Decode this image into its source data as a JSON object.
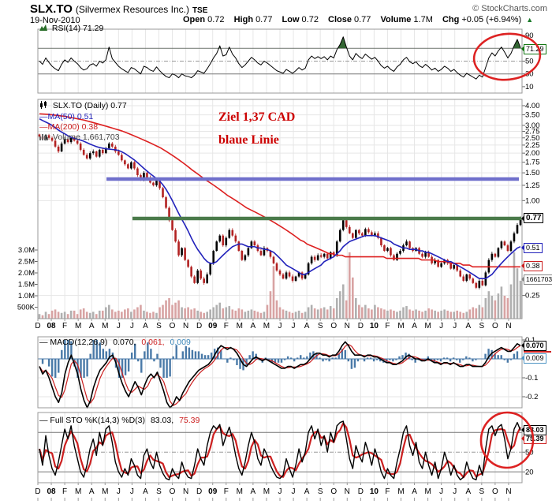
{
  "header": {
    "symbol": "SLX.TO",
    "company": "(Silvermex Resources Inc.)",
    "exchange": "TSE",
    "copyright": "© StockCharts.com",
    "date": "19-Nov-2010",
    "quote": [
      {
        "label": "Open",
        "value": "0.72"
      },
      {
        "label": "High",
        "value": "0.77"
      },
      {
        "label": "Low",
        "value": "0.72"
      },
      {
        "label": "Close",
        "value": "0.77"
      },
      {
        "label": "Volume",
        "value": "1.7M"
      },
      {
        "label": "Chg",
        "value": "+0.05 (+6.94%)"
      }
    ],
    "chg_direction": "▲"
  },
  "legends": {
    "rsi": "RSI(14) 71.29",
    "price_symbol": "SLX.TO (Daily) 0.77",
    "ma50": "—MA(50) 0.51",
    "ma200": "—MA(200) 0.38",
    "volume": "Volume 1,661,703",
    "macd_name": "— MACD(12,26,9)",
    "macd_v1": "0.070,",
    "macd_v2": "0.061,",
    "macd_v3": "0.009",
    "sto_name": "— Full STO %K(14,3) %D(3)",
    "sto_k": "83.03,",
    "sto_d": "75.39"
  },
  "annotations": {
    "line1": "Ziel 1,37 CAD",
    "line2": "blaue Linie"
  },
  "boxes": {
    "rsi": "71.29",
    "close": "0.77",
    "ma50": "0.51",
    "ma200": "0.38",
    "volume": "1661703",
    "macd": "0.070",
    "macd_hist": "0.009",
    "sto_k": "83.03",
    "sto_d": "75.39"
  },
  "colors": {
    "candle_up": "#000000",
    "candle_down": "#b22222",
    "ma50": "#2222bb",
    "ma200": "#dd2020",
    "macd_hist": "#4a7aa8",
    "trendline_blue": "#7070cc",
    "trendline_green": "#4a7a4a",
    "annotation_red": "#cc0000",
    "highlight_circle": "#dd2222",
    "volume_up": "#b0b0b0",
    "volume_down": "#d8a3a3",
    "chg_up": "#1b7a2a"
  },
  "chart_data": {
    "type": "stockchart-multi-panel",
    "x_axis": {
      "range": "Dec-2007 to Nov-2010",
      "labels": [
        "D",
        "08",
        "F",
        "M",
        "A",
        "M",
        "J",
        "J",
        "A",
        "S",
        "O",
        "N",
        "D",
        "09",
        "F",
        "M",
        "A",
        "M",
        "J",
        "J",
        "A",
        "S",
        "O",
        "N",
        "D",
        "10",
        "F",
        "M",
        "A",
        "M",
        "J",
        "J",
        "A",
        "S",
        "O",
        "N"
      ]
    },
    "rsi_panel": {
      "type": "line",
      "name": "RSI(14)",
      "ylim": [
        0,
        100
      ],
      "ticks": [
        "90",
        "50",
        "30",
        "10"
      ],
      "overbought": 70,
      "midline": 50,
      "oversold": 30,
      "last": 71.29,
      "values": [
        50,
        45,
        55,
        48,
        42,
        38,
        35,
        45,
        52,
        48,
        55,
        50,
        46,
        40,
        36,
        38,
        44,
        46,
        42,
        50,
        47,
        52,
        72,
        54,
        48,
        42,
        38,
        35,
        32,
        40,
        38,
        34,
        30,
        42,
        40,
        36,
        34,
        41,
        35,
        30,
        26,
        24,
        30,
        28,
        24,
        30,
        27,
        26,
        24,
        28,
        35,
        33,
        31,
        38,
        46,
        55,
        62,
        74,
        58,
        60,
        72,
        61,
        55,
        46,
        40,
        44,
        50,
        56,
        52,
        47,
        44,
        50,
        47,
        43,
        39,
        35,
        33,
        31,
        37,
        34,
        31,
        35,
        40,
        36,
        39,
        52,
        58,
        54,
        57,
        54,
        57,
        52,
        58,
        55,
        68,
        76,
        88,
        72,
        58,
        52,
        62,
        57,
        54,
        61,
        57,
        53,
        56,
        50,
        43,
        39,
        42,
        37,
        34,
        41,
        45,
        52,
        56,
        49,
        46,
        49,
        43,
        40,
        45,
        41,
        36,
        39,
        34,
        37,
        42,
        39,
        34,
        37,
        32,
        28,
        25,
        31,
        28,
        25,
        22,
        28,
        25,
        40,
        55,
        63,
        58,
        66,
        72,
        64,
        55,
        62,
        74,
        84,
        71.29
      ]
    },
    "price_panel": {
      "type": "candlestick",
      "log_scale": true,
      "ylim": [
        0.18,
        4.34
      ],
      "yticks": [
        "4.00",
        "3.50",
        "3.00",
        "2.75",
        "2.50",
        "2.25",
        "2.00",
        "1.75",
        "1.50",
        "1.25",
        "1.00",
        "0.25"
      ],
      "volume_ticks": [
        "3.0M",
        "2.5M",
        "2.0M",
        "1.5M",
        "1.0M",
        "500K"
      ],
      "last_close": 0.77,
      "ma50_last": 0.51,
      "ma200_last": 0.38,
      "volume_last": 1661703,
      "trendlines": [
        {
          "value": 1.37,
          "color": "#7070cc",
          "note": "blaue Linie — Ziel 1,37 CAD"
        },
        {
          "value": 0.77,
          "color": "#4a7a4a"
        }
      ],
      "weekly_closes": [
        2.55,
        2.45,
        2.6,
        2.5,
        2.4,
        2.2,
        2.05,
        2.3,
        2.45,
        2.35,
        2.5,
        2.4,
        2.3,
        2.1,
        1.95,
        1.85,
        2.0,
        2.05,
        1.9,
        2.1,
        2.0,
        2.15,
        2.3,
        2.2,
        2.05,
        1.95,
        1.8,
        1.7,
        1.6,
        1.75,
        1.6,
        1.45,
        1.35,
        1.5,
        1.4,
        1.3,
        1.25,
        1.35,
        1.2,
        1.05,
        0.9,
        0.75,
        0.65,
        0.55,
        0.45,
        0.5,
        0.42,
        0.38,
        0.33,
        0.3,
        0.36,
        0.32,
        0.3,
        0.34,
        0.4,
        0.48,
        0.55,
        0.6,
        0.52,
        0.58,
        0.65,
        0.6,
        0.55,
        0.48,
        0.42,
        0.45,
        0.5,
        0.55,
        0.52,
        0.48,
        0.45,
        0.5,
        0.48,
        0.44,
        0.4,
        0.36,
        0.34,
        0.32,
        0.35,
        0.33,
        0.31,
        0.33,
        0.35,
        0.32,
        0.34,
        0.4,
        0.44,
        0.42,
        0.45,
        0.44,
        0.46,
        0.43,
        0.47,
        0.45,
        0.55,
        0.65,
        0.75,
        0.68,
        0.62,
        0.58,
        0.65,
        0.62,
        0.6,
        0.66,
        0.63,
        0.6,
        0.62,
        0.58,
        0.52,
        0.48,
        0.5,
        0.45,
        0.42,
        0.46,
        0.48,
        0.52,
        0.55,
        0.5,
        0.48,
        0.5,
        0.46,
        0.44,
        0.47,
        0.44,
        0.4,
        0.42,
        0.38,
        0.4,
        0.42,
        0.4,
        0.37,
        0.39,
        0.36,
        0.33,
        0.31,
        0.34,
        0.32,
        0.3,
        0.28,
        0.31,
        0.29,
        0.35,
        0.42,
        0.46,
        0.44,
        0.5,
        0.55,
        0.52,
        0.48,
        0.55,
        0.62,
        0.7,
        0.77
      ],
      "ma50": [
        3.3,
        3.22,
        3.15,
        3.08,
        3.0,
        2.9,
        2.8,
        2.72,
        2.65,
        2.58,
        2.52,
        2.48,
        2.45,
        2.42,
        2.38,
        2.33,
        2.28,
        2.24,
        2.2,
        2.17,
        2.15,
        2.13,
        2.12,
        2.11,
        2.1,
        2.08,
        2.04,
        1.99,
        1.93,
        1.87,
        1.81,
        1.74,
        1.67,
        1.6,
        1.54,
        1.48,
        1.43,
        1.38,
        1.33,
        1.26,
        1.18,
        1.09,
        1.0,
        0.91,
        0.83,
        0.76,
        0.7,
        0.64,
        0.58,
        0.53,
        0.49,
        0.46,
        0.43,
        0.41,
        0.4,
        0.4,
        0.41,
        0.43,
        0.45,
        0.47,
        0.49,
        0.51,
        0.52,
        0.53,
        0.53,
        0.52,
        0.51,
        0.51,
        0.51,
        0.5,
        0.5,
        0.49,
        0.49,
        0.48,
        0.47,
        0.45,
        0.43,
        0.41,
        0.39,
        0.38,
        0.37,
        0.36,
        0.35,
        0.34,
        0.34,
        0.35,
        0.36,
        0.37,
        0.38,
        0.39,
        0.41,
        0.42,
        0.43,
        0.44,
        0.46,
        0.48,
        0.51,
        0.53,
        0.55,
        0.56,
        0.57,
        0.58,
        0.59,
        0.6,
        0.6,
        0.6,
        0.6,
        0.59,
        0.58,
        0.57,
        0.56,
        0.55,
        0.53,
        0.52,
        0.51,
        0.5,
        0.5,
        0.49,
        0.49,
        0.49,
        0.48,
        0.48,
        0.47,
        0.47,
        0.46,
        0.45,
        0.44,
        0.43,
        0.42,
        0.41,
        0.41,
        0.4,
        0.39,
        0.38,
        0.37,
        0.36,
        0.35,
        0.34,
        0.33,
        0.32,
        0.32,
        0.32,
        0.33,
        0.34,
        0.36,
        0.38,
        0.4,
        0.42,
        0.44,
        0.46,
        0.48,
        0.5,
        0.51
      ],
      "ma200": [
        3.55,
        3.54,
        3.53,
        3.52,
        3.5,
        3.48,
        3.46,
        3.44,
        3.42,
        3.39,
        3.36,
        3.33,
        3.3,
        3.27,
        3.24,
        3.2,
        3.16,
        3.12,
        3.08,
        3.04,
        3.0,
        2.96,
        2.92,
        2.88,
        2.84,
        2.8,
        2.76,
        2.71,
        2.66,
        2.61,
        2.56,
        2.51,
        2.46,
        2.41,
        2.36,
        2.31,
        2.26,
        2.21,
        2.16,
        2.1,
        2.04,
        1.98,
        1.92,
        1.86,
        1.8,
        1.74,
        1.68,
        1.62,
        1.56,
        1.51,
        1.46,
        1.41,
        1.36,
        1.32,
        1.28,
        1.24,
        1.2,
        1.16,
        1.12,
        1.08,
        1.05,
        1.02,
        0.99,
        0.96,
        0.93,
        0.9,
        0.88,
        0.86,
        0.84,
        0.82,
        0.8,
        0.78,
        0.76,
        0.74,
        0.72,
        0.7,
        0.68,
        0.66,
        0.64,
        0.62,
        0.6,
        0.58,
        0.56,
        0.55,
        0.53,
        0.52,
        0.51,
        0.5,
        0.49,
        0.48,
        0.47,
        0.46,
        0.46,
        0.45,
        0.45,
        0.45,
        0.44,
        0.44,
        0.44,
        0.44,
        0.44,
        0.44,
        0.44,
        0.44,
        0.44,
        0.44,
        0.44,
        0.44,
        0.44,
        0.43,
        0.43,
        0.43,
        0.43,
        0.43,
        0.43,
        0.43,
        0.43,
        0.43,
        0.43,
        0.43,
        0.42,
        0.42,
        0.42,
        0.42,
        0.42,
        0.41,
        0.41,
        0.41,
        0.41,
        0.4,
        0.4,
        0.4,
        0.4,
        0.39,
        0.39,
        0.39,
        0.38,
        0.38,
        0.38,
        0.38,
        0.38,
        0.38,
        0.38,
        0.38,
        0.38,
        0.38,
        0.38,
        0.38,
        0.38,
        0.38,
        0.38,
        0.38
      ],
      "volume_millions": [
        0.2,
        0.15,
        0.3,
        0.2,
        0.35,
        0.4,
        0.3,
        0.25,
        0.3,
        0.2,
        0.35,
        0.35,
        0.2,
        0.4,
        0.45,
        0.3,
        0.25,
        0.3,
        0.2,
        0.35,
        0.35,
        0.5,
        0.6,
        0.4,
        0.3,
        0.35,
        0.3,
        0.4,
        0.45,
        0.3,
        0.4,
        0.5,
        0.6,
        0.35,
        0.3,
        0.25,
        0.3,
        0.25,
        0.5,
        0.6,
        0.8,
        0.9,
        0.6,
        0.7,
        0.8,
        0.5,
        0.45,
        0.5,
        0.4,
        0.45,
        0.35,
        0.3,
        0.25,
        0.3,
        0.4,
        0.5,
        0.6,
        0.7,
        0.45,
        0.5,
        0.55,
        0.4,
        0.35,
        0.45,
        0.4,
        0.3,
        0.35,
        0.4,
        0.35,
        0.3,
        0.25,
        0.3,
        0.6,
        1.2,
        2.3,
        0.8,
        0.5,
        0.4,
        0.35,
        0.3,
        0.25,
        0.3,
        0.35,
        0.25,
        0.3,
        0.5,
        0.6,
        0.45,
        0.4,
        0.45,
        0.5,
        0.4,
        0.55,
        0.45,
        0.9,
        1.2,
        1.5,
        0.8,
        2.9,
        1.8,
        0.9,
        0.6,
        0.5,
        0.6,
        0.45,
        0.4,
        0.6,
        0.5,
        0.45,
        0.4,
        0.35,
        0.4,
        0.35,
        0.3,
        0.35,
        0.5,
        0.55,
        0.4,
        0.35,
        0.4,
        0.35,
        0.3,
        0.35,
        0.45,
        0.4,
        0.35,
        0.3,
        0.35,
        0.4,
        0.35,
        0.3,
        0.3,
        0.35,
        0.3,
        0.25,
        0.3,
        0.4,
        0.5,
        0.45,
        0.6,
        0.5,
        0.9,
        1.2,
        1.0,
        0.8,
        1.1,
        1.4,
        1.0,
        0.9,
        1.5,
        2.9,
        2.2,
        1.66
      ]
    },
    "macd_panel": {
      "type": "line+histogram",
      "name": "MACD(12,26,9)",
      "ylim": [
        -0.29,
        0.12
      ],
      "ticks": [
        "0.1",
        "-0.1",
        "-0.2"
      ],
      "last": [
        0.07,
        0.061,
        0.009
      ],
      "values": [
        -0.04,
        -0.08,
        -0.06,
        -0.1,
        -0.15,
        -0.2,
        -0.23,
        -0.18,
        -0.08,
        -0.02,
        0.02,
        -0.03,
        -0.08,
        -0.16,
        -0.22,
        -0.26,
        -0.22,
        -0.15,
        -0.1,
        -0.06,
        -0.04,
        -0.02,
        0.01,
        0.02,
        -0.02,
        -0.08,
        -0.13,
        -0.17,
        -0.2,
        -0.16,
        -0.12,
        -0.15,
        -0.19,
        -0.14,
        -0.1,
        -0.08,
        -0.1,
        -0.07,
        -0.12,
        -0.17,
        -0.23,
        -0.27,
        -0.24,
        -0.2,
        -0.22,
        -0.18,
        -0.15,
        -0.12,
        -0.1,
        -0.08,
        -0.06,
        -0.05,
        -0.04,
        -0.03,
        -0.01,
        0.02,
        0.05,
        0.07,
        0.06,
        0.05,
        0.06,
        0.05,
        0.03,
        0.0,
        -0.03,
        -0.04,
        -0.02,
        0.0,
        0.01,
        0.0,
        -0.01,
        0.0,
        -0.01,
        -0.02,
        -0.03,
        -0.04,
        -0.05,
        -0.05,
        -0.04,
        -0.04,
        -0.05,
        -0.04,
        -0.03,
        -0.03,
        -0.02,
        0.0,
        0.02,
        0.03,
        0.03,
        0.02,
        0.02,
        0.01,
        0.02,
        0.02,
        0.04,
        0.07,
        0.09,
        0.07,
        0.04,
        0.02,
        0.02,
        0.02,
        0.01,
        0.02,
        0.02,
        0.01,
        0.01,
        0.0,
        -0.01,
        -0.02,
        -0.02,
        -0.03,
        -0.03,
        -0.02,
        -0.01,
        0.01,
        0.02,
        0.01,
        0.0,
        0.0,
        -0.01,
        -0.01,
        0.0,
        -0.01,
        -0.02,
        -0.02,
        -0.03,
        -0.02,
        -0.02,
        -0.03,
        -0.02,
        -0.03,
        -0.04,
        -0.04,
        -0.03,
        -0.03,
        -0.04,
        -0.04,
        -0.04,
        -0.04,
        -0.02,
        0.01,
        0.03,
        0.04,
        0.05,
        0.06,
        0.05,
        0.04,
        0.04,
        0.06,
        0.08,
        0.07
      ]
    },
    "sto_panel": {
      "type": "line",
      "name": "Full STO %K(14,3) %D(3)",
      "ylim": [
        0,
        100
      ],
      "ticks": [
        "50",
        "20"
      ],
      "overbought": 80,
      "midline": 50,
      "oversold": 20,
      "last_k": 83.03,
      "last_d": 75.39,
      "k_values": [
        55,
        30,
        75,
        45,
        25,
        15,
        35,
        60,
        85,
        70,
        90,
        60,
        40,
        20,
        12,
        30,
        55,
        70,
        45,
        80,
        60,
        85,
        90,
        65,
        35,
        20,
        12,
        25,
        15,
        40,
        30,
        15,
        10,
        45,
        55,
        35,
        25,
        50,
        30,
        18,
        10,
        8,
        25,
        15,
        10,
        35,
        20,
        12,
        10,
        30,
        55,
        40,
        30,
        60,
        80,
        90,
        85,
        92,
        60,
        75,
        88,
        70,
        45,
        25,
        15,
        35,
        60,
        80,
        65,
        40,
        30,
        55,
        45,
        30,
        20,
        12,
        10,
        15,
        40,
        25,
        12,
        30,
        55,
        35,
        50,
        80,
        90,
        70,
        85,
        60,
        75,
        50,
        80,
        65,
        90,
        95,
        97,
        70,
        40,
        25,
        60,
        45,
        35,
        65,
        50,
        30,
        55,
        40,
        20,
        10,
        25,
        15,
        10,
        35,
        55,
        80,
        90,
        60,
        45,
        65,
        35,
        25,
        50,
        30,
        15,
        35,
        10,
        25,
        50,
        35,
        15,
        30,
        15,
        8,
        12,
        35,
        20,
        10,
        8,
        30,
        15,
        55,
        85,
        90,
        75,
        88,
        92,
        70,
        40,
        55,
        85,
        95,
        83.03
      ]
    }
  }
}
